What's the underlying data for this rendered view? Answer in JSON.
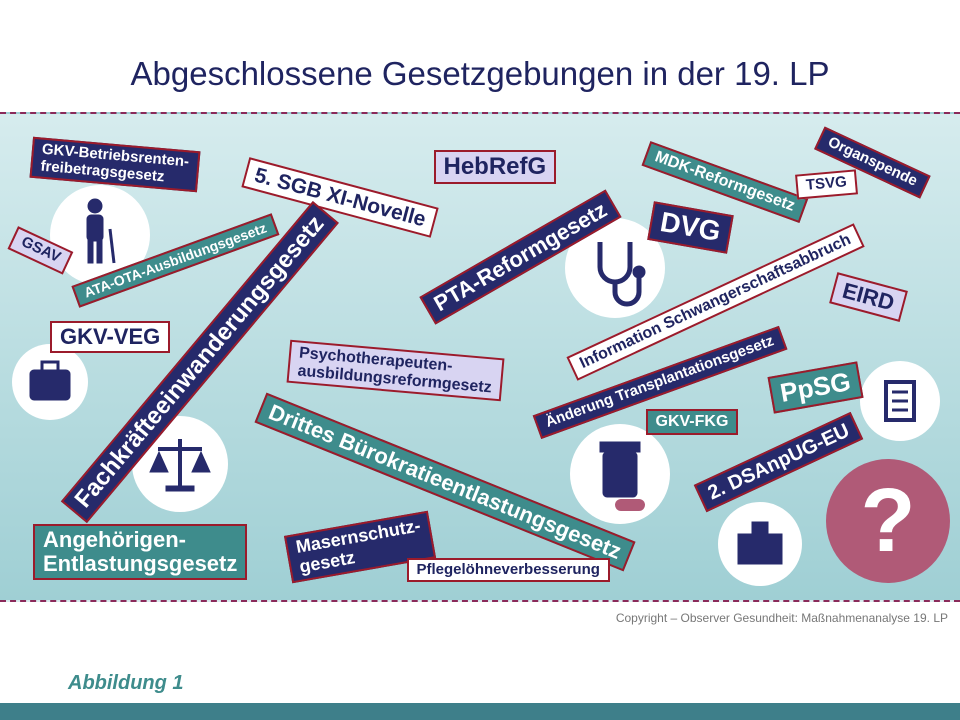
{
  "title": "Abgeschlossene Gesetzgebungen in der 19. LP",
  "labels": [
    {
      "lines": [
        "GKV-Betriebsrenten-",
        "freibetragsgesetz"
      ]
    },
    {
      "lines": [
        "5. SGB XI-Novelle"
      ]
    },
    {
      "lines": [
        "HebRefG"
      ]
    },
    {
      "lines": [
        "MDK-Reformgesetz"
      ]
    },
    {
      "lines": [
        "Organspende"
      ]
    },
    {
      "lines": [
        "TSVG"
      ]
    },
    {
      "lines": [
        "GSAV"
      ]
    },
    {
      "lines": [
        "ATA-OTA-Ausbildungsgesetz"
      ]
    },
    {
      "lines": [
        "PTA-Reformgesetz"
      ]
    },
    {
      "lines": [
        "DVG"
      ]
    },
    {
      "lines": [
        "Information Schwangerschaftsabbruch"
      ]
    },
    {
      "lines": [
        "EIRD"
      ]
    },
    {
      "lines": [
        "GKV-VEG"
      ]
    },
    {
      "lines": [
        "Fachkräfteeinwanderungsgesetz"
      ]
    },
    {
      "lines": [
        "Psychotherapeuten-",
        "ausbildungsreformgesetz"
      ]
    },
    {
      "lines": [
        "Änderung Transplantationsgesetz"
      ]
    },
    {
      "lines": [
        "PpSG"
      ]
    },
    {
      "lines": [
        "GKV-FKG"
      ]
    },
    {
      "lines": [
        "Drittes Bürokratieentlastungsgesetz"
      ]
    },
    {
      "lines": [
        "2. DSAnpUG-EU"
      ]
    },
    {
      "lines": [
        "Angehörigen-",
        "Entlastungsgesetz"
      ]
    },
    {
      "lines": [
        "Masernschutz-",
        "gesetz"
      ]
    },
    {
      "lines": [
        "Pflegelöhneverbesserung"
      ]
    }
  ],
  "question": "?",
  "copyright": "Copyright – Observer Gesundheit: Maßnahmenanalyse 19. LP",
  "caption": "Abbildung 1"
}
